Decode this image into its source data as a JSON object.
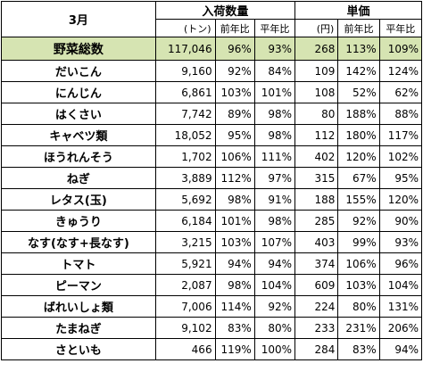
{
  "header": {
    "month": "3月",
    "arrivals_label": "入荷数量",
    "price_label": "単価",
    "arrivals_unit": "(トン)",
    "price_unit": "(円)",
    "yoy_label": "前年比",
    "vs_avg_label": "平年比"
  },
  "total": {
    "name": "野菜総数",
    "qty": "117,046",
    "qty_yoy": "96%",
    "qty_avg": "93%",
    "price": "268",
    "price_yoy": "113%",
    "price_avg": "109%"
  },
  "rows": [
    {
      "name": "だいこん",
      "qty": "9,160",
      "qty_yoy": "92%",
      "qty_avg": "84%",
      "price": "109",
      "price_yoy": "142%",
      "price_avg": "124%"
    },
    {
      "name": "にんじん",
      "qty": "6,861",
      "qty_yoy": "103%",
      "qty_avg": "101%",
      "price": "108",
      "price_yoy": "52%",
      "price_avg": "62%"
    },
    {
      "name": "はくさい",
      "qty": "7,742",
      "qty_yoy": "89%",
      "qty_avg": "98%",
      "price": "80",
      "price_yoy": "188%",
      "price_avg": "88%"
    },
    {
      "name": "キャベツ類",
      "qty": "18,052",
      "qty_yoy": "95%",
      "qty_avg": "98%",
      "price": "112",
      "price_yoy": "180%",
      "price_avg": "117%"
    },
    {
      "name": "ほうれんそう",
      "qty": "1,702",
      "qty_yoy": "106%",
      "qty_avg": "111%",
      "price": "402",
      "price_yoy": "120%",
      "price_avg": "102%"
    },
    {
      "name": "ねぎ",
      "qty": "3,889",
      "qty_yoy": "112%",
      "qty_avg": "97%",
      "price": "315",
      "price_yoy": "67%",
      "price_avg": "95%"
    },
    {
      "name": "レタス(玉)",
      "qty": "5,692",
      "qty_yoy": "98%",
      "qty_avg": "91%",
      "price": "188",
      "price_yoy": "155%",
      "price_avg": "120%"
    },
    {
      "name": "きゅうり",
      "qty": "6,184",
      "qty_yoy": "101%",
      "qty_avg": "98%",
      "price": "285",
      "price_yoy": "92%",
      "price_avg": "90%"
    },
    {
      "name": "なす(なす+長なす)",
      "qty": "3,215",
      "qty_yoy": "103%",
      "qty_avg": "107%",
      "price": "403",
      "price_yoy": "99%",
      "price_avg": "93%"
    },
    {
      "name": "トマト",
      "qty": "5,921",
      "qty_yoy": "94%",
      "qty_avg": "94%",
      "price": "374",
      "price_yoy": "106%",
      "price_avg": "96%"
    },
    {
      "name": "ピーマン",
      "qty": "2,087",
      "qty_yoy": "98%",
      "qty_avg": "104%",
      "price": "609",
      "price_yoy": "103%",
      "price_avg": "104%"
    },
    {
      "name": "ばれいしょ類",
      "qty": "7,006",
      "qty_yoy": "114%",
      "qty_avg": "92%",
      "price": "224",
      "price_yoy": "80%",
      "price_avg": "131%"
    },
    {
      "name": "たまねぎ",
      "qty": "9,102",
      "qty_yoy": "83%",
      "qty_avg": "80%",
      "price": "233",
      "price_yoy": "231%",
      "price_avg": "206%"
    },
    {
      "name": "さといも",
      "qty": "466",
      "qty_yoy": "119%",
      "qty_avg": "100%",
      "price": "284",
      "price_yoy": "83%",
      "price_avg": "94%"
    }
  ]
}
